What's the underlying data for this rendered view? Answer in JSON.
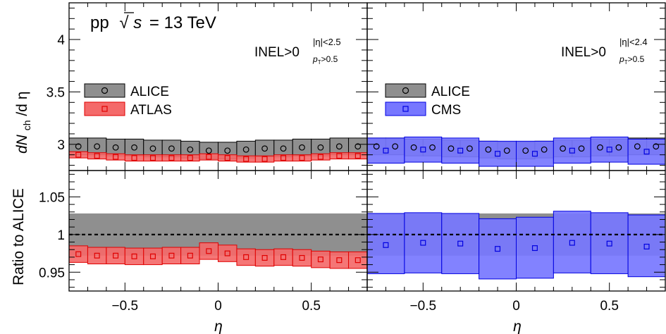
{
  "figure": {
    "energy_label": "pp",
    "sqrt_symbol": "√",
    "s_symbol": "s",
    "energy_value": "= 13 TeV",
    "ylabel_top_main": "dN",
    "ylabel_top_sub": "ch",
    "ylabel_top_tail": "/d η",
    "ylabel_bottom": "Ratio to ALICE",
    "xlabel": "η"
  },
  "colors": {
    "alice_fill": "#8f8f8f",
    "alice_edge": "#000000",
    "atlas_fill": "#f46a6a",
    "atlas_edge": "#e00000",
    "cms_fill": "#7777ff",
    "cms_edge": "#0000e0"
  },
  "chart_data": [
    {
      "type": "scatter",
      "panel": "top-left",
      "annotation": "INEL>0",
      "annotation_sup": "|η|<2.5",
      "annotation_sub": "pT>0.5",
      "ylabel": "dNch/dη",
      "xlim": [
        -0.8,
        0.8
      ],
      "ylim": [
        2.75,
        4.35
      ],
      "yticks": [
        3,
        3.5,
        4
      ],
      "ytick_labels": [
        "3",
        "3.5",
        "4"
      ],
      "legend_position": "left",
      "series": [
        {
          "name": "ALICE",
          "marker": "circle",
          "x": [
            -0.75,
            -0.65,
            -0.55,
            -0.45,
            -0.35,
            -0.25,
            -0.15,
            -0.05,
            0.05,
            0.15,
            0.25,
            0.35,
            0.45,
            0.55,
            0.65,
            0.75
          ],
          "y": [
            2.98,
            2.98,
            2.97,
            2.97,
            2.96,
            2.96,
            2.95,
            2.94,
            2.94,
            2.95,
            2.96,
            2.96,
            2.97,
            2.97,
            2.98,
            2.98
          ],
          "sys": [
            0.08,
            0.08,
            0.08,
            0.08,
            0.08,
            0.08,
            0.08,
            0.08,
            0.08,
            0.08,
            0.08,
            0.08,
            0.08,
            0.08,
            0.08,
            0.08
          ]
        },
        {
          "name": "ATLAS",
          "marker": "square",
          "x": [
            -0.75,
            -0.65,
            -0.55,
            -0.45,
            -0.35,
            -0.25,
            -0.15,
            -0.05,
            0.05,
            0.15,
            0.25,
            0.35,
            0.45,
            0.55,
            0.65,
            0.75
          ],
          "y": [
            2.9,
            2.89,
            2.88,
            2.87,
            2.87,
            2.87,
            2.87,
            2.88,
            2.87,
            2.86,
            2.86,
            2.87,
            2.87,
            2.88,
            2.89,
            2.89
          ],
          "sys": [
            0.03,
            0.03,
            0.03,
            0.03,
            0.03,
            0.03,
            0.03,
            0.03,
            0.03,
            0.03,
            0.03,
            0.03,
            0.03,
            0.03,
            0.03,
            0.03
          ]
        }
      ]
    },
    {
      "type": "scatter",
      "panel": "top-right",
      "annotation": "INEL>0",
      "annotation_sup": "|η|<2.4",
      "annotation_sub": "pT>0.5",
      "xlim": [
        -0.8,
        0.8
      ],
      "ylim": [
        2.75,
        4.35
      ],
      "legend_position": "left",
      "series": [
        {
          "name": "ALICE",
          "marker": "circle",
          "x": [
            -0.75,
            -0.65,
            -0.55,
            -0.45,
            -0.35,
            -0.25,
            -0.15,
            -0.05,
            0.05,
            0.15,
            0.25,
            0.35,
            0.45,
            0.55,
            0.65,
            0.75
          ],
          "y": [
            2.98,
            2.98,
            2.97,
            2.97,
            2.96,
            2.96,
            2.95,
            2.94,
            2.94,
            2.95,
            2.96,
            2.96,
            2.97,
            2.97,
            2.98,
            2.98
          ],
          "sys": [
            0.08,
            0.08,
            0.08,
            0.08,
            0.08,
            0.08,
            0.08,
            0.08,
            0.08,
            0.08,
            0.08,
            0.08,
            0.08,
            0.08,
            0.08,
            0.08
          ]
        },
        {
          "name": "CMS",
          "marker": "square",
          "x": [
            -0.7,
            -0.5,
            -0.3,
            -0.1,
            0.1,
            0.3,
            0.5,
            0.7
          ],
          "x_edges": [
            -0.8,
            -0.6,
            -0.4,
            -0.2,
            0.0,
            0.2,
            0.4,
            0.6,
            0.8
          ],
          "y": [
            2.94,
            2.95,
            2.94,
            2.91,
            2.91,
            2.94,
            2.95,
            2.93
          ],
          "sys": [
            0.12,
            0.12,
            0.12,
            0.12,
            0.12,
            0.12,
            0.12,
            0.12
          ]
        }
      ]
    },
    {
      "type": "scatter",
      "panel": "bottom-left",
      "ylabel": "Ratio to ALICE",
      "xlabel": "η",
      "xlim": [
        -0.8,
        0.8
      ],
      "ylim": [
        0.925,
        1.085
      ],
      "yticks": [
        0.95,
        1,
        1.05
      ],
      "ytick_labels": [
        "0.95",
        "1",
        "1.05"
      ],
      "xticks": [
        -0.5,
        0,
        0.5
      ],
      "xtick_labels": [
        "−0.5",
        "0",
        "0.5"
      ],
      "reference_line": 1,
      "alice_band": [
        0.972,
        1.028
      ],
      "series": [
        {
          "name": "ATLAS",
          "marker": "square",
          "x": [
            -0.75,
            -0.65,
            -0.55,
            -0.45,
            -0.35,
            -0.25,
            -0.15,
            -0.05,
            0.05,
            0.15,
            0.25,
            0.35,
            0.45,
            0.55,
            0.65,
            0.75
          ],
          "y": [
            0.974,
            0.972,
            0.972,
            0.971,
            0.971,
            0.972,
            0.972,
            0.978,
            0.975,
            0.97,
            0.969,
            0.97,
            0.969,
            0.967,
            0.966,
            0.966
          ],
          "sys": [
            0.011,
            0.011,
            0.011,
            0.011,
            0.011,
            0.011,
            0.011,
            0.011,
            0.011,
            0.011,
            0.011,
            0.011,
            0.011,
            0.011,
            0.011,
            0.011
          ]
        }
      ]
    },
    {
      "type": "scatter",
      "panel": "bottom-right",
      "xlabel": "η",
      "xlim": [
        -0.8,
        0.8
      ],
      "ylim": [
        0.925,
        1.085
      ],
      "xticks": [
        -0.5,
        0,
        0.5
      ],
      "xtick_labels": [
        "−0.5",
        "0",
        "0.5"
      ],
      "reference_line": 1,
      "alice_band": [
        0.972,
        1.028
      ],
      "series": [
        {
          "name": "CMS",
          "marker": "square",
          "x": [
            -0.7,
            -0.5,
            -0.3,
            -0.1,
            0.1,
            0.3,
            0.5,
            0.7
          ],
          "x_edges": [
            -0.8,
            -0.6,
            -0.4,
            -0.2,
            0.0,
            0.2,
            0.4,
            0.6,
            0.8
          ],
          "y": [
            0.986,
            0.989,
            0.988,
            0.981,
            0.982,
            0.989,
            0.988,
            0.984
          ],
          "sys_low": [
            0.038,
            0.04,
            0.04,
            0.04,
            0.04,
            0.04,
            0.04,
            0.04
          ],
          "sys_high": [
            0.042,
            0.04,
            0.04,
            0.04,
            0.041,
            0.042,
            0.041,
            0.042
          ]
        }
      ]
    }
  ]
}
